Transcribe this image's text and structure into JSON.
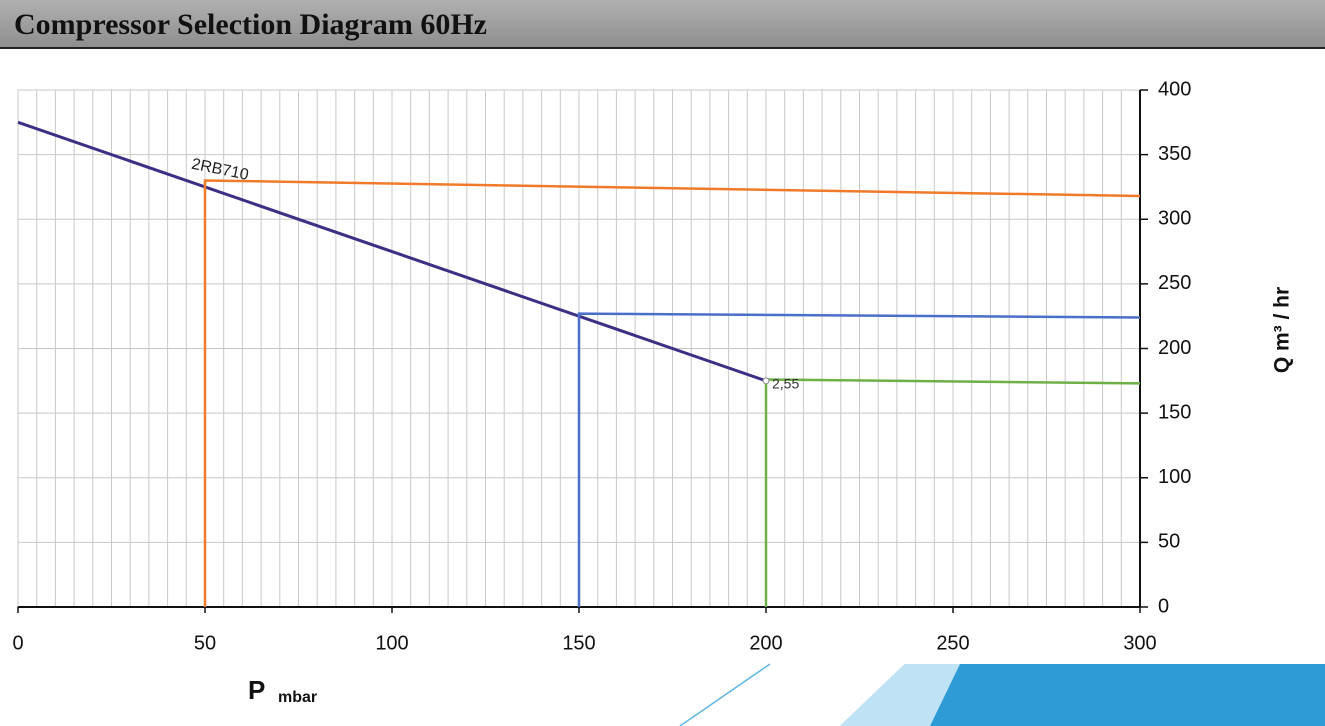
{
  "chart_data": {
    "type": "line",
    "title": "Compressor Selection Diagram 60Hz",
    "xlabel": "P",
    "xlabel_unit": "mbar",
    "ylabel": "Q m³ / hr",
    "xlim": [
      0,
      300
    ],
    "ylim": [
      0,
      400
    ],
    "xticks": [
      0,
      50,
      100,
      150,
      200,
      250,
      300
    ],
    "yticks": [
      0,
      50,
      100,
      150,
      200,
      250,
      300,
      350,
      400
    ],
    "grid": true,
    "xminor": 5,
    "series": [
      {
        "name": "2RB710",
        "color": "#3d2f86",
        "x": [
          0,
          200
        ],
        "values": [
          375,
          175
        ]
      },
      {
        "color": "#f07a2a",
        "x": [
          50,
          50,
          300
        ],
        "values": [
          0,
          330,
          318
        ]
      },
      {
        "color": "#4a6fc9",
        "x": [
          150,
          150,
          300
        ],
        "values": [
          0,
          227,
          224
        ]
      },
      {
        "color": "#6cb046",
        "x": [
          200,
          200,
          300
        ],
        "values": [
          0,
          176,
          173
        ]
      }
    ],
    "annotations": [
      {
        "text": "2,55",
        "x": 200,
        "y": 175
      }
    ]
  }
}
